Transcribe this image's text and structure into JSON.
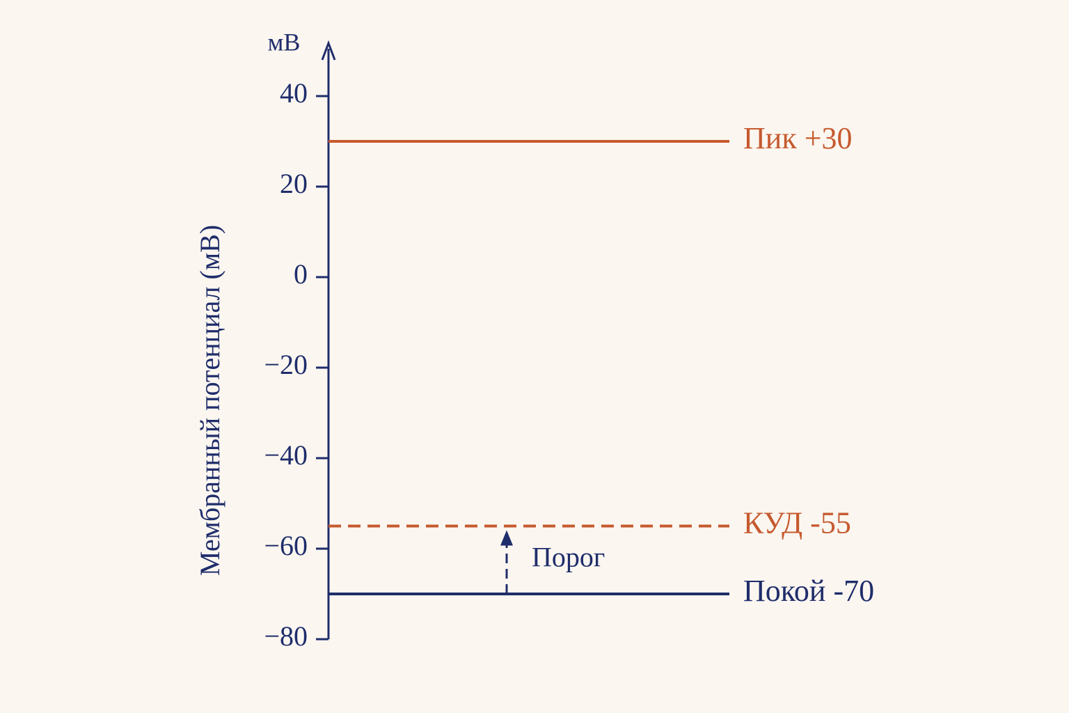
{
  "chart_data": {
    "type": "hline",
    "unit_label": "мВ",
    "y_label": "Мембранный потенциал (мВ)",
    "values": [
      30,
      -55,
      -70
    ],
    "value_labels": [
      "Пик +30",
      "КУД -55",
      "Покой -70"
    ],
    "colors": [
      "#c65a2e",
      "#c65a2e",
      "#1f2d6b"
    ],
    "dashed": [
      false,
      true,
      false
    ],
    "annotation": "Порог",
    "ylim": [
      -80,
      52
    ],
    "yticks": [
      40,
      20,
      0,
      {
        "value": -20,
        "label": "−20"
      },
      {
        "value": -40,
        "label": "−40"
      },
      {
        "value": -60,
        "label": "−60"
      },
      {
        "value": -80,
        "label": "−80"
      }
    ],
    "axis_color": "#1f2d6b"
  }
}
